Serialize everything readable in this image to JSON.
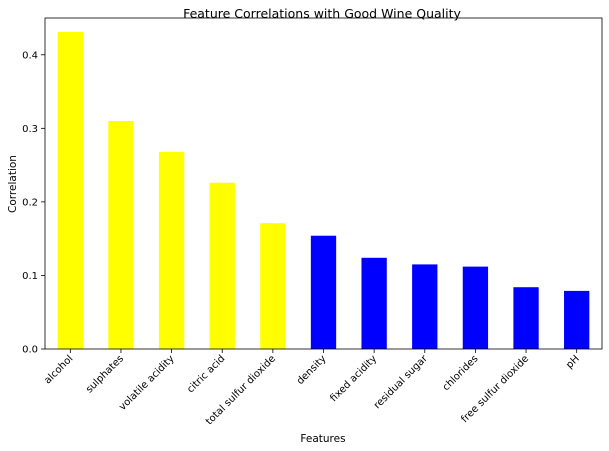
{
  "chart_data": {
    "type": "bar",
    "title": "Feature Correlations with Good Wine Quality",
    "xlabel": "Features",
    "ylabel": "Correlation",
    "ylim": [
      0,
      0.45
    ],
    "yticks": [
      0.0,
      0.1,
      0.2,
      0.3,
      0.4
    ],
    "ytick_labels": [
      "0.0",
      "0.1",
      "0.2",
      "0.3",
      "0.4"
    ],
    "grid": false,
    "categories": [
      "alcohol",
      "sulphates",
      "volatile acidity",
      "citric acid",
      "total sulfur dioxide",
      "density",
      "fixed acidity",
      "residual sugar",
      "chlorides",
      "free sulfur dioxide",
      "pH"
    ],
    "values": [
      0.431,
      0.31,
      0.268,
      0.226,
      0.171,
      0.154,
      0.124,
      0.115,
      0.112,
      0.084,
      0.079
    ],
    "colors": [
      "#ffff00",
      "#ffff00",
      "#ffff00",
      "#ffff00",
      "#ffff00",
      "#0000ff",
      "#0000ff",
      "#0000ff",
      "#0000ff",
      "#0000ff",
      "#0000ff"
    ]
  }
}
